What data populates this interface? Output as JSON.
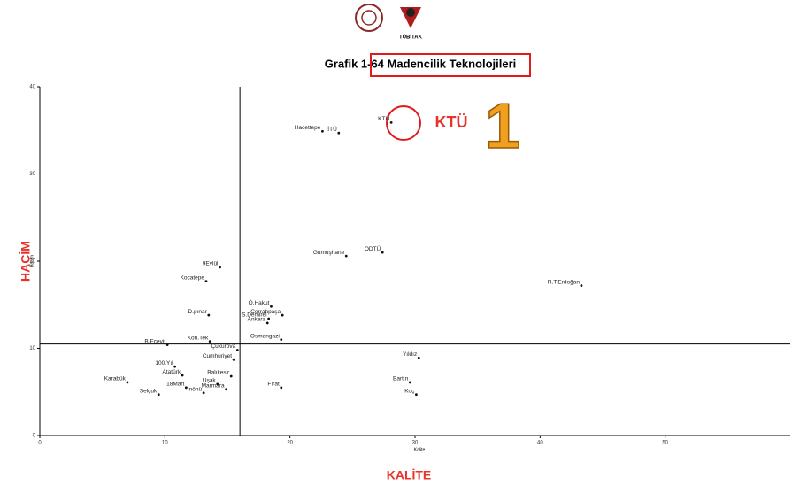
{
  "chart_data": {
    "type": "scatter",
    "logo_text": "TÜBİTAK",
    "title": "Grafik 1-64 Madencilik Teknolojileri",
    "x_label": "Kalite",
    "y_label": "Hacim",
    "x_label_big": "KALİTE",
    "y_label_big": "HACİM",
    "highlight_label": "KTÜ",
    "rank_label": "1",
    "color": "#111111",
    "xlim": [
      0,
      60
    ],
    "ylim": [
      0,
      40
    ],
    "xticks": [
      0,
      10,
      20,
      30,
      40,
      50
    ],
    "yticks": [
      0,
      10,
      20,
      30,
      40
    ],
    "reference_x": 16,
    "reference_y": 10.5,
    "labels": [
      "KTÜ",
      "Hacettepe",
      "İTÜ",
      "ODTÜ",
      "Gumuşhane",
      "R.T.Erdoğan",
      "9Eylül",
      "Kocatepe",
      "Ö.Hakut",
      "S.Demirel",
      "Cerrahpaşa",
      "Ankara",
      "D.pınar",
      "Osmangazi",
      "Kon.Tek",
      "B.Ecevit",
      "Çukurova",
      "Cumhuriyet",
      "100.Yıl",
      "Balıkesir",
      "Atatürk",
      "Karabük",
      "18Mart",
      "Uşak",
      "Marmara",
      "Selçuk",
      "İnönü",
      "Fırat",
      "Yıldız",
      "Bartın",
      "Koç"
    ],
    "x": [
      28.1,
      22.6,
      23.9,
      27.4,
      24.5,
      43.3,
      14.4,
      13.3,
      18.5,
      18.3,
      19.4,
      18.2,
      13.5,
      19.3,
      13.6,
      10.2,
      15.8,
      15.5,
      10.8,
      15.3,
      11.4,
      7.0,
      11.7,
      14.2,
      14.9,
      9.5,
      13.1,
      19.3,
      30.3,
      29.6,
      30.1
    ],
    "y": [
      35.9,
      34.9,
      34.7,
      21.0,
      20.6,
      17.2,
      19.3,
      17.7,
      14.8,
      13.4,
      13.8,
      12.9,
      13.8,
      11.0,
      10.8,
      10.4,
      9.8,
      8.7,
      7.9,
      6.8,
      6.9,
      6.1,
      5.5,
      5.9,
      5.3,
      4.7,
      4.9,
      5.5,
      8.9,
      6.1,
      4.7
    ]
  }
}
